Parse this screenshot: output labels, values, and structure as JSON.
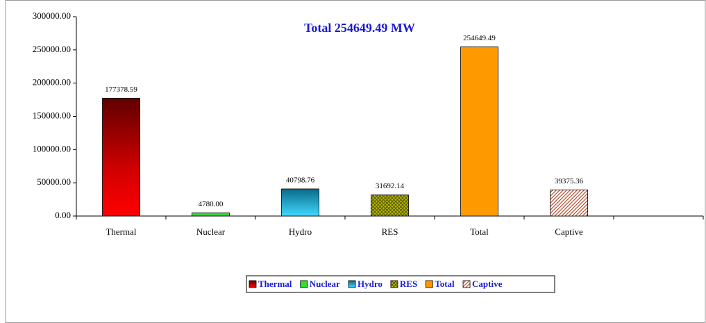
{
  "chart_data": {
    "type": "bar",
    "title": "Total 254649.49 MW",
    "categories": [
      "Thermal",
      "Nuclear",
      "Hydro",
      "RES",
      "Total",
      "Captive",
      null
    ],
    "values": [
      177378.59,
      4780.0,
      40798.76,
      31692.14,
      254649.49,
      39375.36,
      null
    ],
    "value_labels": [
      "177378.59",
      "4780.00",
      "40798.76",
      "31692.14",
      "254649.49",
      "39375.36",
      null
    ],
    "colors": [
      "#c00000",
      "#33dd33",
      "#1fa8c8",
      "#999900",
      "#ff9900",
      "#c86040",
      null
    ],
    "ylim": [
      0,
      300000
    ],
    "yticks": [
      {
        "value": 0,
        "label": "0.00"
      },
      {
        "value": 50000,
        "label": "50000.00"
      },
      {
        "value": 100000,
        "label": "100000.00"
      },
      {
        "value": 150000,
        "label": "150000.00"
      },
      {
        "value": 200000,
        "label": "200000.00"
      },
      {
        "value": 250000,
        "label": "250000.00"
      },
      {
        "value": 300000,
        "label": "300000.00"
      }
    ],
    "legend": true
  }
}
